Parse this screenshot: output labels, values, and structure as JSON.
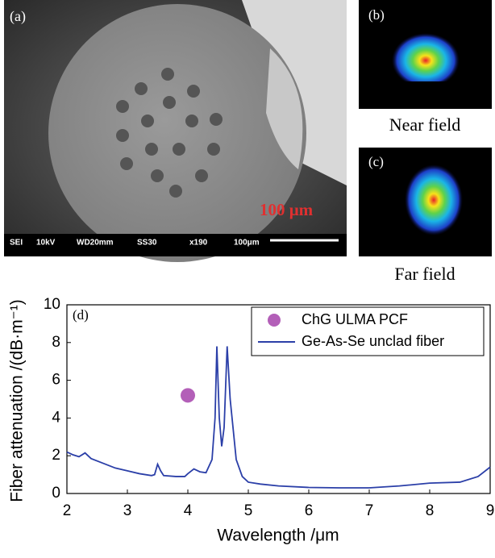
{
  "panels": {
    "a": {
      "label": "(a)",
      "scale_label": "100 μm",
      "info_bar": [
        "SEI",
        "10kV",
        "WD20mm",
        "SS30",
        "x190",
        "100μm"
      ]
    },
    "b": {
      "label": "(b)",
      "caption": "Near field"
    },
    "c": {
      "label": "(c)",
      "caption": "Far field"
    }
  },
  "chart_data": {
    "type": "line",
    "panel_label": "(d)",
    "x_label": "Wavelength /μm",
    "y_label": "Fiber attenuation /(dB·m⁻¹)",
    "xlim": [
      2,
      9
    ],
    "xticks": [
      2,
      3,
      4,
      5,
      6,
      7,
      8,
      9
    ],
    "ylim": [
      0,
      10
    ],
    "yticks": [
      0,
      2,
      4,
      6,
      8,
      10
    ],
    "grid": false,
    "legend": "top-right",
    "series": [
      {
        "name": "ChG ULMA PCF",
        "type": "scatter",
        "color": "#b35fb8",
        "x": [
          4.0
        ],
        "values": [
          5.2
        ]
      },
      {
        "name": "Ge-As-Se unclad fiber",
        "type": "line",
        "color": "#2b3fa8",
        "x": [
          2.0,
          2.1,
          2.2,
          2.3,
          2.4,
          2.6,
          2.8,
          3.0,
          3.2,
          3.4,
          3.45,
          3.5,
          3.55,
          3.6,
          3.8,
          3.95,
          4.0,
          4.1,
          4.2,
          4.3,
          4.4,
          4.45,
          4.48,
          4.52,
          4.56,
          4.6,
          4.65,
          4.7,
          4.8,
          4.9,
          5.0,
          5.2,
          5.5,
          6.0,
          6.5,
          7.0,
          7.5,
          8.0,
          8.5,
          8.8,
          9.0
        ],
        "values": [
          2.2,
          2.05,
          1.95,
          2.15,
          1.85,
          1.6,
          1.35,
          1.2,
          1.05,
          0.95,
          1.0,
          1.55,
          1.2,
          0.95,
          0.9,
          0.9,
          1.05,
          1.3,
          1.15,
          1.1,
          1.8,
          4.0,
          7.8,
          4.0,
          2.5,
          3.5,
          7.8,
          5.0,
          1.8,
          0.9,
          0.6,
          0.5,
          0.4,
          0.32,
          0.3,
          0.3,
          0.4,
          0.55,
          0.6,
          0.9,
          1.4
        ]
      }
    ]
  }
}
